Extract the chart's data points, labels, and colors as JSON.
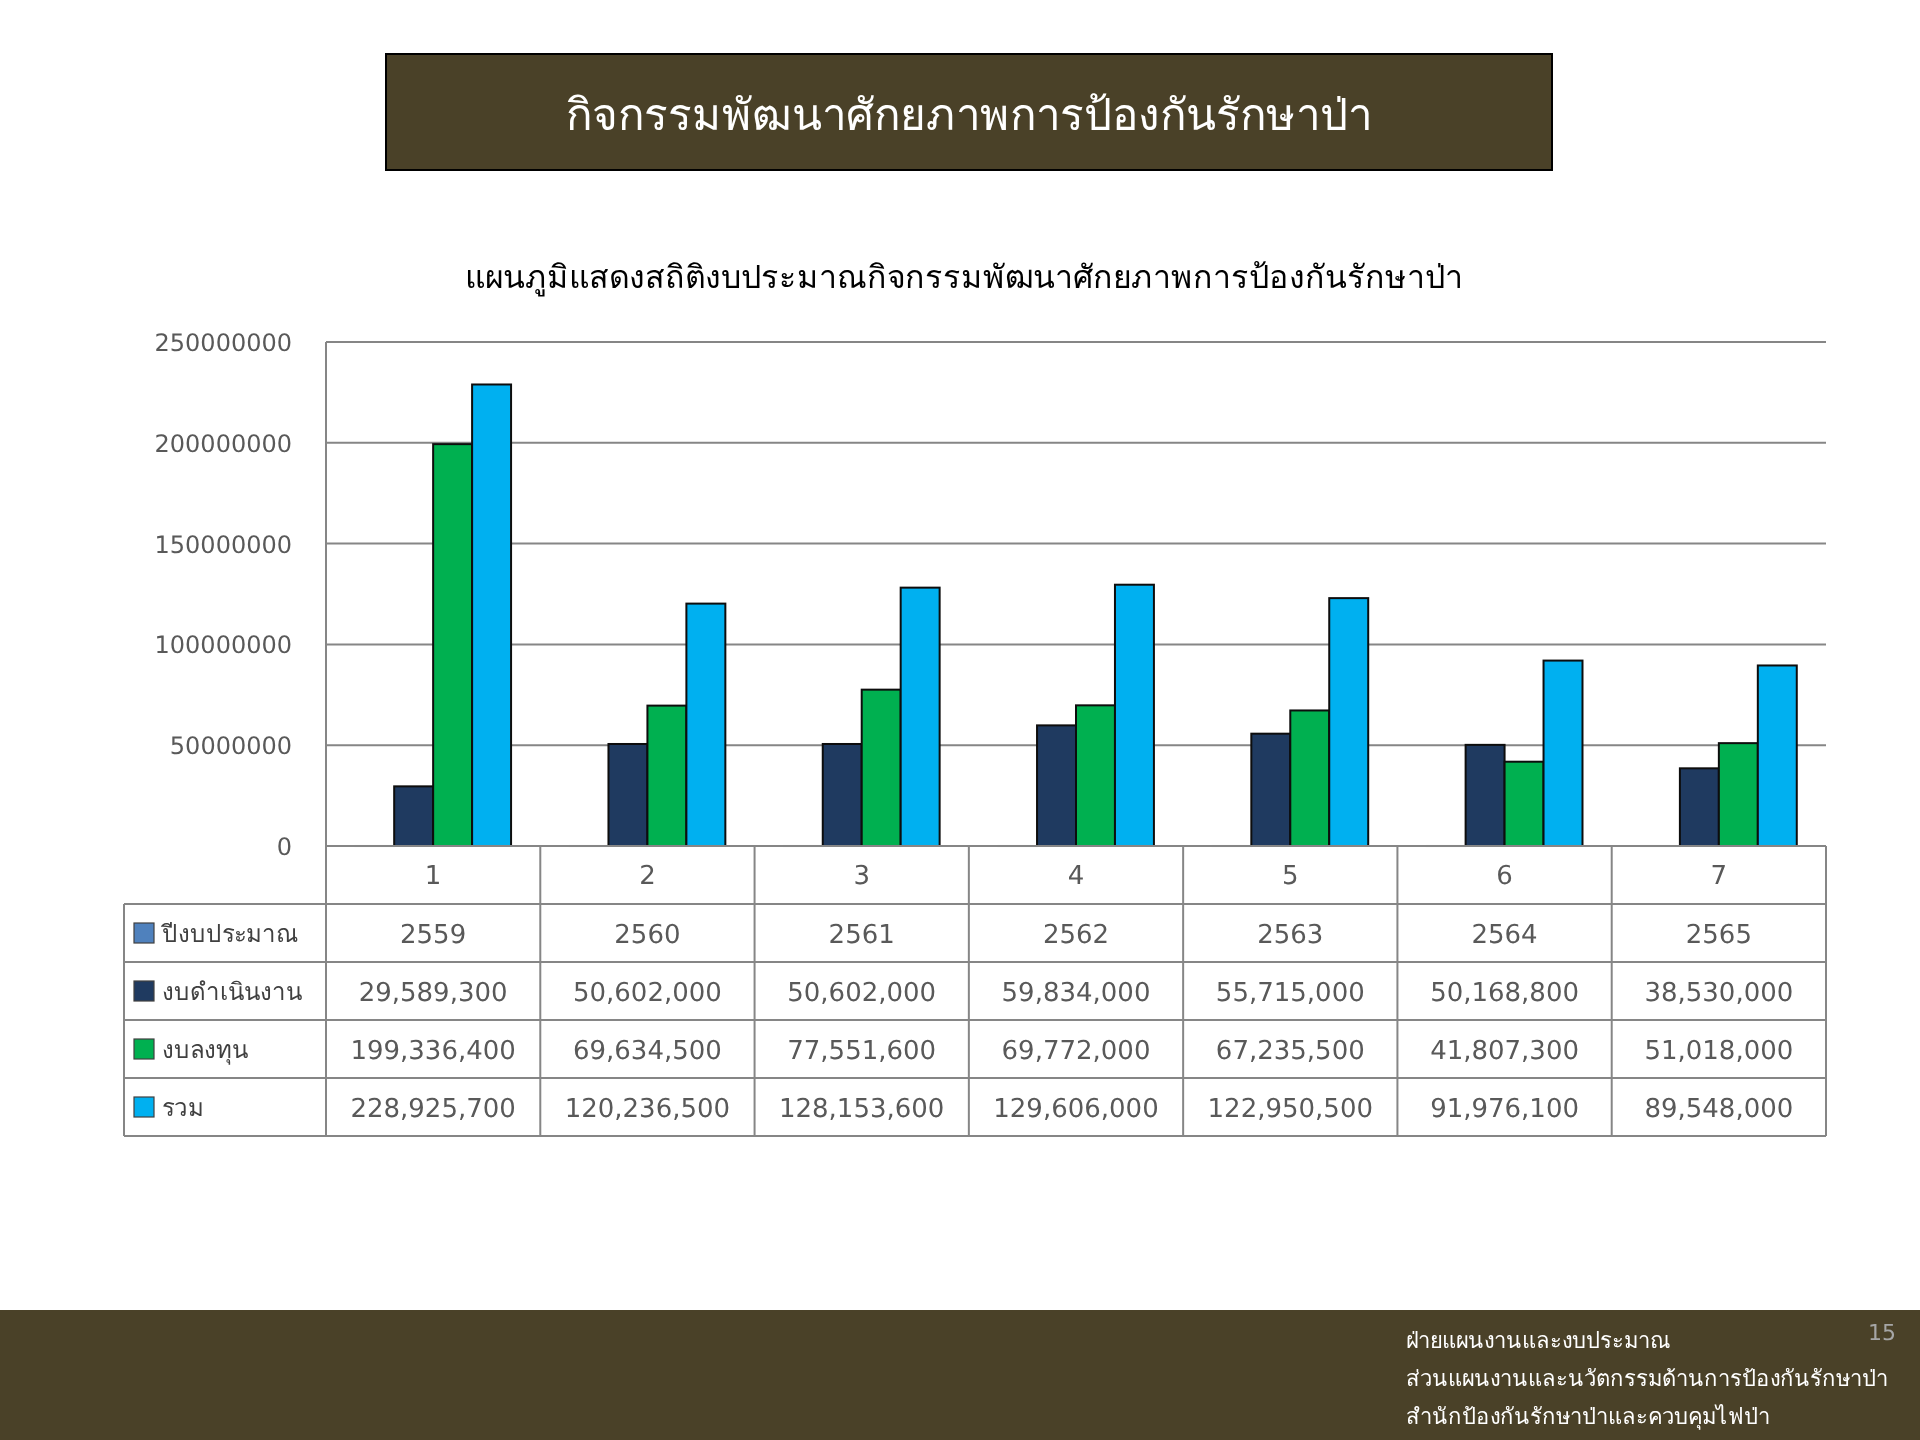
{
  "chart_data": {
    "type": "bar",
    "title": "กิจกรรมพัฒนาศักยภาพการป้องกันรักษาป่า",
    "subtitle": "แผนภูมิแสดงสถิติงบประมาณกิจกรรมพัฒนาศักยภาพการป้องกันรักษาป่า",
    "categories": [
      "1",
      "2",
      "3",
      "4",
      "5",
      "6",
      "7"
    ],
    "series": [
      {
        "name": "ปีงบประมาณ",
        "color": "#4f81bd",
        "values": [
          2559,
          2560,
          2561,
          2562,
          2563,
          2564,
          2565
        ],
        "value_labels": [
          "2559",
          "2560",
          "2561",
          "2562",
          "2563",
          "2564",
          "2565"
        ]
      },
      {
        "name": "งบดำเนินงาน",
        "color": "#1f3a60",
        "values": [
          29589300,
          50602000,
          50602000,
          59834000,
          55715000,
          50168800,
          38530000
        ],
        "value_labels": [
          "29,589,300",
          "50,602,000",
          "50,602,000",
          "59,834,000",
          "55,715,000",
          "50,168,800",
          "38,530,000"
        ]
      },
      {
        "name": "งบลงทุน",
        "color": "#00b050",
        "values": [
          199336400,
          69634500,
          77551600,
          69772000,
          67235500,
          41807300,
          51018000
        ],
        "value_labels": [
          "199,336,400",
          "69,634,500",
          "77,551,600",
          "69,772,000",
          "67,235,500",
          "41,807,300",
          "51,018,000"
        ]
      },
      {
        "name": "รวม",
        "color": "#00b0f0",
        "values": [
          228925700,
          120236500,
          128153600,
          129606000,
          122950500,
          91976100,
          89548000
        ],
        "value_labels": [
          "228,925,700",
          "120,236,500",
          "128,153,600",
          "129,606,000",
          "122,950,500",
          "91,976,100",
          "89,548,000"
        ]
      }
    ],
    "ylim": [
      0,
      250000000
    ],
    "yticks": [
      0,
      50000000,
      100000000,
      150000000,
      200000000,
      250000000
    ],
    "grid": "y",
    "legend": "bottom",
    "annotations": [
      "ฝ่ายแผนงานและงบประมาณ",
      "ส่วนแผนงานและนวัตกรรมด้านการป้องกันรักษาป่า",
      "สำนักป้องกันรักษาป่าและควบคุมไฟป่า",
      "15"
    ]
  }
}
